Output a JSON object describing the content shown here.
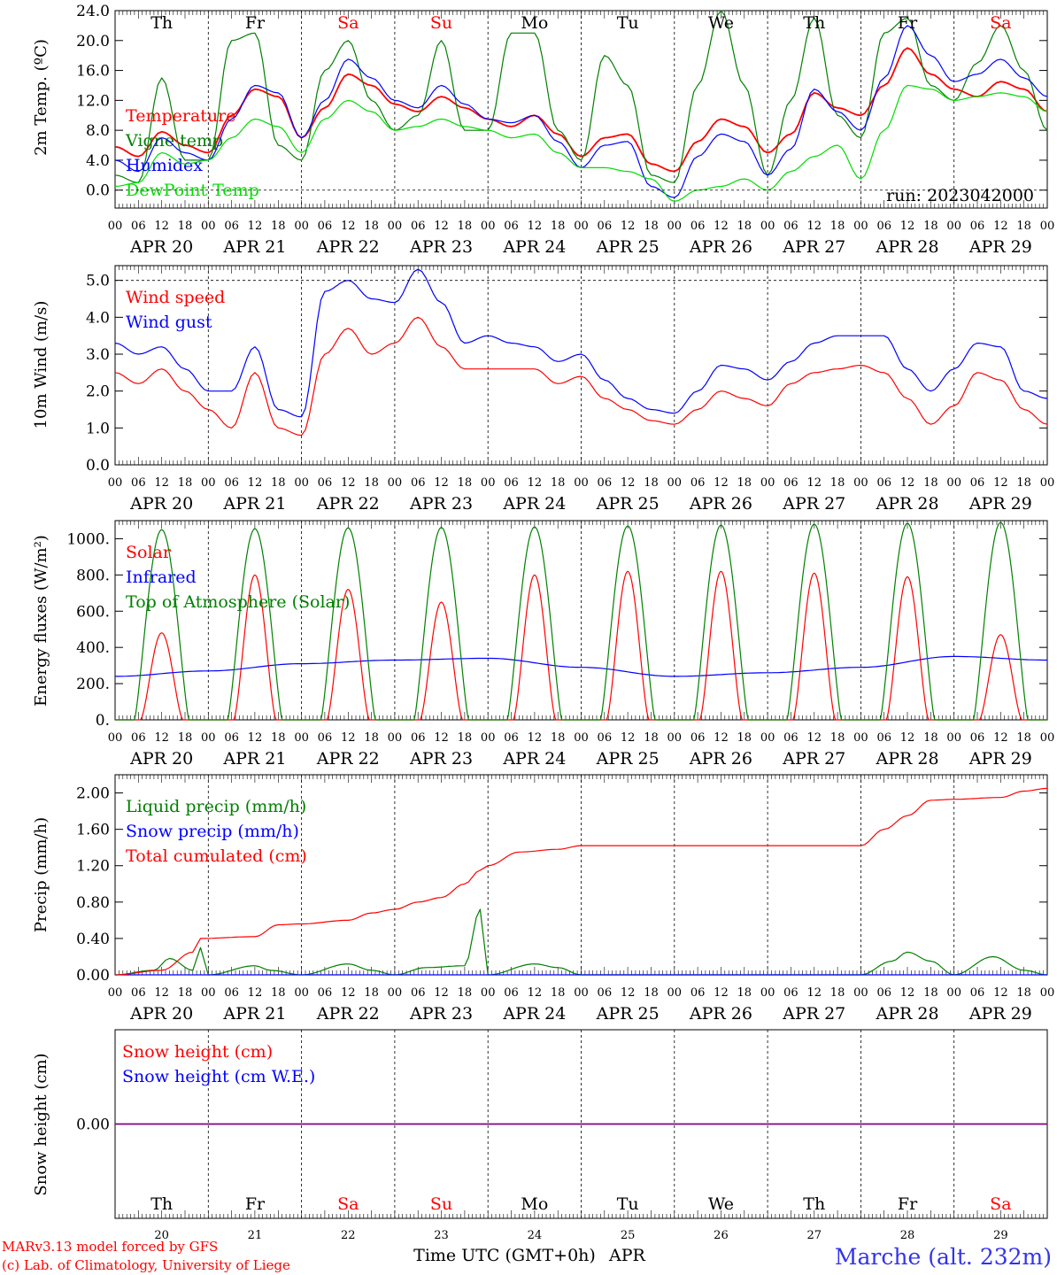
{
  "meta": {
    "run_label": "run: 2023042000",
    "credit_line1": "MARv3.13 model forced by GFS",
    "credit_line2": "(c) Lab. of Climatology, University of Liege",
    "x_axis_title": "Time UTC (GMT+0h)",
    "month_label": "APR",
    "station": "Marche (alt. 232m)"
  },
  "axis": {
    "hour_labels": [
      "00",
      "06",
      "12",
      "18"
    ],
    "final_hour_label": "00",
    "date_labels": [
      "APR 20",
      "APR 21",
      "APR 22",
      "APR 23",
      "APR 24",
      "APR 25",
      "APR 26",
      "APR 27",
      "APR 28",
      "APR 29"
    ],
    "day_numbers": [
      "20",
      "21",
      "22",
      "23",
      "24",
      "25",
      "26",
      "27",
      "28",
      "29"
    ],
    "weekdays": [
      "Th",
      "Fr",
      "Sa",
      "Su",
      "Mo",
      "Tu",
      "We",
      "Th",
      "Fr",
      "Sa"
    ],
    "weekday_colors": [
      "#000000",
      "#000000",
      "#ff0000",
      "#ff0000",
      "#000000",
      "#000000",
      "#000000",
      "#000000",
      "#000000",
      "#ff0000"
    ]
  },
  "colors": {
    "red": "#ff0000",
    "green": "#008000",
    "blue": "#0000ff",
    "lightgreen": "#00dd00",
    "purple": "#800080"
  },
  "chart_data": [
    {
      "type": "line",
      "ylabel": "2m Temp. (ºC)",
      "ylim": [
        -2.4,
        24.0
      ],
      "yticks": [
        "0.0",
        "4.0",
        "8.0",
        "12.0",
        "16.0",
        "20.0",
        "24.0"
      ],
      "x_unit": "hours since APR 20 00 UTC",
      "x": [
        0,
        6,
        12,
        18,
        24,
        30,
        36,
        42,
        48,
        54,
        60,
        66,
        72,
        78,
        84,
        90,
        96,
        102,
        108,
        114,
        120,
        126,
        132,
        138,
        144,
        150,
        156,
        162,
        168,
        174,
        180,
        186,
        192,
        198,
        204,
        210,
        216,
        222,
        228,
        234,
        240
      ],
      "series": [
        {
          "name": "Temperature",
          "color": "#ff0000",
          "values": [
            5.8,
            4.5,
            7.8,
            6.0,
            5.0,
            10.0,
            13.5,
            12.5,
            7.0,
            11.0,
            15.5,
            14.0,
            11.5,
            10.5,
            12.5,
            11.0,
            9.5,
            8.5,
            10.0,
            7.5,
            4.5,
            7.0,
            7.5,
            3.5,
            2.5,
            6.5,
            9.5,
            8.5,
            5.0,
            7.5,
            13.0,
            11.0,
            10.0,
            14.0,
            19.0,
            15.5,
            13.5,
            12.5,
            14.5,
            13.5,
            10.5
          ]
        },
        {
          "name": "Vigne temp",
          "color": "#008000",
          "values": [
            2.0,
            1.0,
            15.0,
            4.0,
            4.0,
            20.0,
            21.0,
            6.0,
            4.0,
            16.0,
            20.0,
            12.0,
            8.0,
            10.0,
            20.0,
            8.0,
            8.0,
            21.0,
            21.0,
            8.0,
            4.0,
            18.0,
            14.0,
            2.0,
            1.0,
            14.0,
            24.0,
            14.0,
            2.0,
            12.0,
            23.0,
            10.0,
            7.0,
            21.0,
            23.0,
            14.0,
            12.0,
            17.0,
            22.0,
            16.0,
            8.0
          ]
        },
        {
          "name": "Humidex",
          "color": "#0000ff",
          "values": [
            4.0,
            2.5,
            7.0,
            5.0,
            4.0,
            9.5,
            14.0,
            13.0,
            7.0,
            12.0,
            17.5,
            15.0,
            12.0,
            11.0,
            14.0,
            11.5,
            9.5,
            9.0,
            10.0,
            6.5,
            3.0,
            6.0,
            6.5,
            0.5,
            -1.0,
            4.5,
            7.5,
            6.5,
            2.0,
            5.5,
            13.5,
            10.5,
            8.0,
            15.0,
            22.0,
            18.0,
            14.5,
            15.5,
            17.5,
            15.0,
            12.5
          ]
        },
        {
          "name": "DewPoint Temp",
          "color": "#00dd00",
          "values": [
            0.5,
            1.0,
            5.0,
            3.5,
            4.0,
            7.0,
            9.5,
            8.5,
            5.0,
            9.5,
            12.0,
            10.5,
            8.0,
            8.5,
            9.5,
            8.5,
            8.0,
            7.0,
            7.5,
            5.0,
            3.0,
            3.0,
            2.5,
            1.5,
            -1.5,
            0.0,
            0.5,
            1.5,
            0.0,
            2.5,
            4.5,
            6.0,
            1.5,
            8.0,
            14.0,
            13.5,
            12.0,
            12.5,
            13.0,
            12.5,
            10.5
          ]
        }
      ]
    },
    {
      "type": "line",
      "ylabel": "10m Wind (m/s)",
      "ylim": [
        0.0,
        5.4
      ],
      "yticks": [
        "0.0",
        "1.0",
        "2.0",
        "3.0",
        "4.0",
        "5.0"
      ],
      "x_unit": "hours since APR 20 00 UTC",
      "x": [
        0,
        6,
        12,
        18,
        24,
        30,
        36,
        42,
        48,
        54,
        60,
        66,
        72,
        78,
        84,
        90,
        96,
        102,
        108,
        114,
        120,
        126,
        132,
        138,
        144,
        150,
        156,
        162,
        168,
        174,
        180,
        186,
        192,
        198,
        204,
        210,
        216,
        222,
        228,
        234,
        240
      ],
      "series": [
        {
          "name": "Wind speed",
          "color": "#ff0000",
          "values": [
            2.5,
            2.2,
            2.6,
            2.0,
            1.5,
            1.0,
            2.5,
            1.0,
            0.8,
            3.0,
            3.7,
            3.0,
            3.3,
            4.0,
            3.2,
            2.6,
            2.6,
            2.6,
            2.6,
            2.2,
            2.4,
            1.8,
            1.5,
            1.2,
            1.1,
            1.5,
            2.0,
            1.8,
            1.6,
            2.2,
            2.5,
            2.6,
            2.7,
            2.5,
            1.8,
            1.1,
            1.6,
            2.5,
            2.3,
            1.5,
            1.1
          ]
        },
        {
          "name": "Wind gust",
          "color": "#0000ff",
          "values": [
            3.3,
            3.0,
            3.2,
            2.6,
            2.0,
            2.0,
            3.2,
            1.5,
            1.3,
            4.7,
            5.0,
            4.5,
            4.4,
            5.3,
            4.4,
            3.3,
            3.5,
            3.3,
            3.2,
            2.8,
            3.0,
            2.3,
            1.8,
            1.5,
            1.4,
            2.0,
            2.7,
            2.6,
            2.3,
            2.8,
            3.3,
            3.5,
            3.5,
            3.5,
            2.6,
            2.0,
            2.6,
            3.3,
            3.2,
            2.0,
            1.8
          ]
        }
      ]
    },
    {
      "type": "line",
      "ylabel": "Energy fluxes (W/m²)",
      "ylim": [
        0,
        1100
      ],
      "yticks": [
        "0.",
        "200.",
        "400.",
        "600.",
        "800.",
        "1000."
      ],
      "x_unit": "hours since APR 20 00 UTC",
      "series": [
        {
          "name": "Solar",
          "color": "#ff0000",
          "daily_peak": [
            480,
            800,
            720,
            650,
            800,
            820,
            820,
            810,
            790,
            470
          ]
        },
        {
          "name": "Infrared",
          "color": "#0000ff",
          "x": [
            0,
            24,
            48,
            72,
            96,
            120,
            144,
            168,
            192,
            216,
            240
          ],
          "values": [
            240,
            270,
            310,
            330,
            340,
            290,
            240,
            260,
            290,
            350,
            330
          ]
        },
        {
          "name": "Top of Atmosphere (Solar)",
          "color": "#008000",
          "daily_peak": [
            1050,
            1055,
            1060,
            1062,
            1065,
            1070,
            1075,
            1080,
            1085,
            1090
          ]
        }
      ]
    },
    {
      "type": "line",
      "ylabel": "Precip (mm/h)",
      "ylim": [
        0.0,
        2.2
      ],
      "yticks": [
        "0.00",
        "0.40",
        "0.80",
        "1.20",
        "1.60",
        "2.00"
      ],
      "x_unit": "hours since APR 20 00 UTC",
      "series": [
        {
          "name": "Liquid precip (mm/h)",
          "color": "#008000",
          "x": [
            0,
            10,
            14,
            20,
            22,
            24,
            36,
            40,
            48,
            60,
            66,
            72,
            80,
            90,
            94,
            96,
            108,
            114,
            120,
            192,
            200,
            204,
            210,
            216,
            226,
            234,
            240
          ],
          "values": [
            0,
            0.05,
            0.18,
            0.05,
            0.3,
            0,
            0.1,
            0.05,
            0,
            0.12,
            0.05,
            0,
            0.08,
            0.1,
            0.72,
            0,
            0.12,
            0.08,
            0,
            0,
            0.15,
            0.25,
            0.15,
            0,
            0.2,
            0.05,
            0
          ]
        },
        {
          "name": "Snow precip (mm/h)",
          "color": "#0000ff",
          "x": [
            0,
            240
          ],
          "values": [
            0,
            0
          ]
        },
        {
          "name": "Total cumulated (cm)",
          "color": "#ff0000",
          "x": [
            0,
            12,
            20,
            22,
            36,
            42,
            48,
            60,
            66,
            72,
            78,
            84,
            90,
            94,
            96,
            104,
            114,
            120,
            144,
            168,
            192,
            198,
            204,
            210,
            216,
            228,
            234,
            240
          ],
          "values": [
            0,
            0.05,
            0.25,
            0.4,
            0.42,
            0.55,
            0.56,
            0.6,
            0.68,
            0.72,
            0.8,
            0.85,
            1.0,
            1.15,
            1.2,
            1.35,
            1.38,
            1.42,
            1.42,
            1.42,
            1.42,
            1.6,
            1.75,
            1.92,
            1.93,
            1.95,
            2.02,
            2.05
          ]
        }
      ]
    },
    {
      "type": "line",
      "ylabel": "Snow height (cm)",
      "ylim": [
        -1.0,
        1.0
      ],
      "yticks": [
        "0.00"
      ],
      "x_unit": "hours since APR 20 00 UTC",
      "series": [
        {
          "name": "Snow height (cm)",
          "color": "#ff0000",
          "x": [
            0,
            240
          ],
          "values": [
            0,
            0
          ]
        },
        {
          "name": "Snow height (cm W.E.)",
          "color": "#0000ff",
          "x": [
            0,
            240
          ],
          "values": [
            0,
            0
          ]
        }
      ]
    }
  ]
}
